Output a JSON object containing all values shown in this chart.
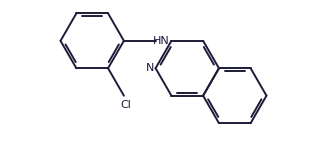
{
  "bg_color": "#ffffff",
  "line_color": "#1c1c3a",
  "text_color": "#1c1c3a",
  "figsize": [
    3.27,
    1.46
  ],
  "dpi": 100,
  "lw": 1.4,
  "NH_label": "HN",
  "Cl_label": "Cl",
  "N_label": "N"
}
